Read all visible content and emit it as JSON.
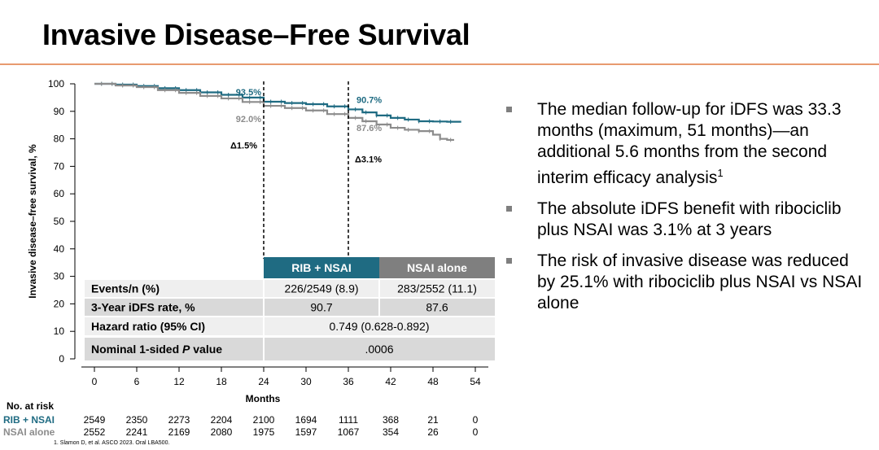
{
  "title": "Invasive Disease–Free Survival",
  "chart_data": {
    "type": "line",
    "title": "Invasive Disease–Free Survival",
    "xlabel": "Months",
    "ylabel": "Invasive disease–free survival, %",
    "xlim": [
      0,
      54
    ],
    "ylim": [
      0,
      100
    ],
    "xticks": [
      0,
      6,
      12,
      18,
      24,
      30,
      36,
      42,
      48,
      54
    ],
    "yticks": [
      0,
      10,
      20,
      30,
      40,
      50,
      60,
      70,
      80,
      90,
      100
    ],
    "series": [
      {
        "name": "RIB + NSAI",
        "color": "#1f6b82",
        "x": [
          0,
          3,
          6,
          9,
          12,
          15,
          18,
          21,
          24,
          27,
          30,
          33,
          36,
          38,
          40,
          42,
          44,
          46,
          48,
          50,
          52
        ],
        "y": [
          100,
          99.7,
          99.2,
          98.4,
          97.7,
          96.9,
          96.0,
          95.0,
          93.5,
          93.0,
          92.6,
          91.8,
          90.7,
          89.6,
          88.5,
          87.6,
          87.0,
          86.4,
          86.3,
          86.2,
          86.2
        ]
      },
      {
        "name": "NSAI alone",
        "color": "#8c8c8c",
        "x": [
          0,
          3,
          6,
          9,
          12,
          15,
          18,
          21,
          24,
          27,
          30,
          33,
          36,
          38,
          40,
          42,
          44,
          46,
          48,
          49,
          50,
          51
        ],
        "y": [
          100,
          99.4,
          98.8,
          97.7,
          96.7,
          95.6,
          94.7,
          93.4,
          92.0,
          91.2,
          90.3,
          89.0,
          87.6,
          86.4,
          85.2,
          84.0,
          83.3,
          82.8,
          81.5,
          80.0,
          79.6,
          79.6
        ]
      }
    ],
    "annotations": [
      {
        "x": 24,
        "y": 93.5,
        "text": "93.5%",
        "series": 0
      },
      {
        "x": 24,
        "y": 92.0,
        "text": "92.0%",
        "series": 1
      },
      {
        "x": 36,
        "y": 90.7,
        "text": "90.7%",
        "series": 0
      },
      {
        "x": 36,
        "y": 87.6,
        "text": "87.6%",
        "series": 1
      },
      {
        "x": 24,
        "y": 76.5,
        "text": "Δ1.5%",
        "series": -1
      },
      {
        "x": 36,
        "y": 71.5,
        "text": "Δ3.1%",
        "series": -1
      }
    ],
    "dashed_lines_at": [
      24,
      36
    ],
    "table": {
      "col_headers": [
        "RIB + NSAI",
        "NSAI alone"
      ],
      "rows": [
        {
          "label": "Events/n (%)",
          "values": [
            "226/2549 (8.9)",
            "283/2552 (11.1)"
          ]
        },
        {
          "label": "3-Year iDFS rate, %",
          "values": [
            "90.7",
            "87.6"
          ]
        },
        {
          "label": "Hazard ratio (95% CI)",
          "merged": "0.749 (0.628-0.892)"
        },
        {
          "label_prefix": "Nominal 1-sided ",
          "label_italic": "P",
          "label_suffix": " value",
          "merged": ".0006"
        }
      ]
    },
    "at_risk": {
      "header": "No. at risk",
      "rows": [
        {
          "label": "RIB + NSAI",
          "values": [
            2549,
            2350,
            2273,
            2204,
            2100,
            1694,
            1111,
            368,
            21,
            0
          ]
        },
        {
          "label": "NSAI alone",
          "values": [
            2552,
            2241,
            2169,
            2080,
            1975,
            1597,
            1067,
            354,
            26,
            0
          ]
        }
      ]
    }
  },
  "bullets": [
    {
      "text": "The median follow-up for iDFS was 33.3 months (maximum, 51 months)—an additional 5.6 months from the second interim efficacy analysis",
      "sup": "1"
    },
    {
      "text": "The absolute iDFS benefit with ribociclib plus NSAI was 3.1% at 3 years",
      "sup": ""
    },
    {
      "text": "The risk of invasive disease was reduced by 25.1% with ribociclib plus NSAI vs NSAI alone",
      "sup": ""
    }
  ],
  "footnote": "1. Slamon D, et al. ASCO 2023. Oral LBA500.",
  "colors": {
    "accent_rule": "#e89a6f",
    "teal": "#1f6b82",
    "gray": "#8c8c8c",
    "table_bg": "#d9d9d9",
    "table_header_gray": "#7f7f7f"
  }
}
